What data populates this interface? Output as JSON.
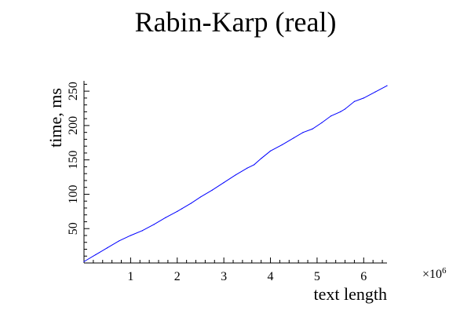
{
  "chart_data": {
    "type": "line",
    "title": "Rabin-Karp (real)",
    "xlabel": "text length",
    "ylabel": "time, ms",
    "x_multiplier": "×10",
    "x_multiplier_exp": "6",
    "xlim": [
      0,
      6.5
    ],
    "ylim": [
      0,
      265
    ],
    "xticks": [
      1,
      2,
      3,
      4,
      5,
      6
    ],
    "yticks": [
      50,
      100,
      150,
      200,
      250
    ],
    "grid": false,
    "series": [
      {
        "color": "#0000ff",
        "x": [
          0.0,
          0.25,
          0.5,
          0.75,
          1.0,
          1.25,
          1.5,
          1.75,
          2.0,
          2.1,
          2.3,
          2.5,
          2.75,
          3.0,
          3.25,
          3.5,
          3.65,
          3.8,
          4.0,
          4.25,
          4.5,
          4.7,
          4.9,
          5.1,
          5.3,
          5.5,
          5.6,
          5.8,
          6.0,
          6.25,
          6.5
        ],
        "y": [
          2,
          12,
          22,
          32,
          40,
          47,
          56,
          66,
          75,
          79,
          87,
          96,
          106,
          117,
          128,
          138,
          143,
          152,
          163,
          172,
          182,
          190,
          195,
          204,
          214,
          220,
          224,
          235,
          240,
          249,
          258
        ]
      }
    ]
  }
}
